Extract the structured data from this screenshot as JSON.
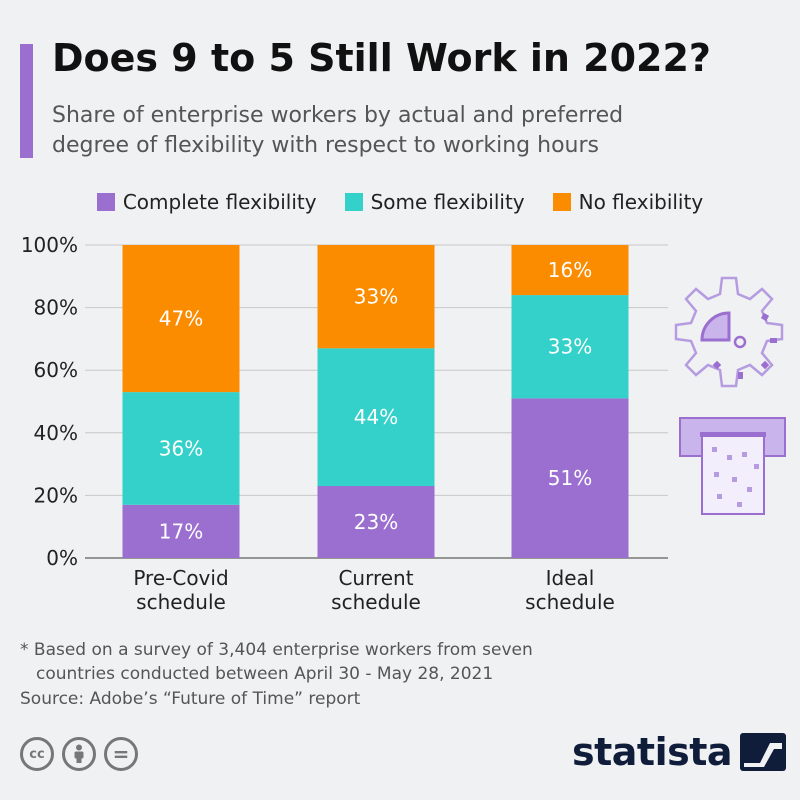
{
  "header": {
    "title": "Does 9 to 5 Still Work in 2022?",
    "subtitle_line1": "Share of enterprise workers by actual and preferred",
    "subtitle_line2": "degree of flexibility with respect to working hours",
    "accent_color": "#9b6fd0"
  },
  "chart_data": {
    "type": "bar",
    "stacked": true,
    "categories": [
      "Pre-Covid schedule",
      "Current schedule",
      "Ideal schedule"
    ],
    "category_lines": [
      [
        "Pre-Covid",
        "schedule"
      ],
      [
        "Current",
        "schedule"
      ],
      [
        "Ideal",
        "schedule"
      ]
    ],
    "series": [
      {
        "name": "Complete flexibility",
        "color": "#9b6fd0",
        "values": [
          17,
          23,
          51
        ]
      },
      {
        "name": "Some flexibility",
        "color": "#33d1c9",
        "values": [
          36,
          44,
          33
        ]
      },
      {
        "name": "No flexibility",
        "color": "#fb8c00",
        "values": [
          47,
          33,
          16
        ]
      }
    ],
    "value_suffix": "%",
    "ylim": [
      0,
      100
    ],
    "yticks": [
      0,
      20,
      40,
      60,
      80,
      100
    ],
    "ytick_labels": [
      "0%",
      "20%",
      "40%",
      "60%",
      "80%",
      "100%"
    ],
    "grid": true,
    "legend_position": "top"
  },
  "footnote": {
    "line1": "* Based on a survey of 3,404 enterprise workers from seven",
    "line2": "countries conducted between April 30 - May 28, 2021"
  },
  "source": "Source: Adobe’s “Future of Time” report",
  "license_icons": [
    "cc-icon",
    "attribution-icon",
    "no-derivatives-icon"
  ],
  "license_labels": [
    "cc",
    "",
    "="
  ],
  "brand": {
    "name": "statista",
    "color": "#0f1d3a"
  }
}
